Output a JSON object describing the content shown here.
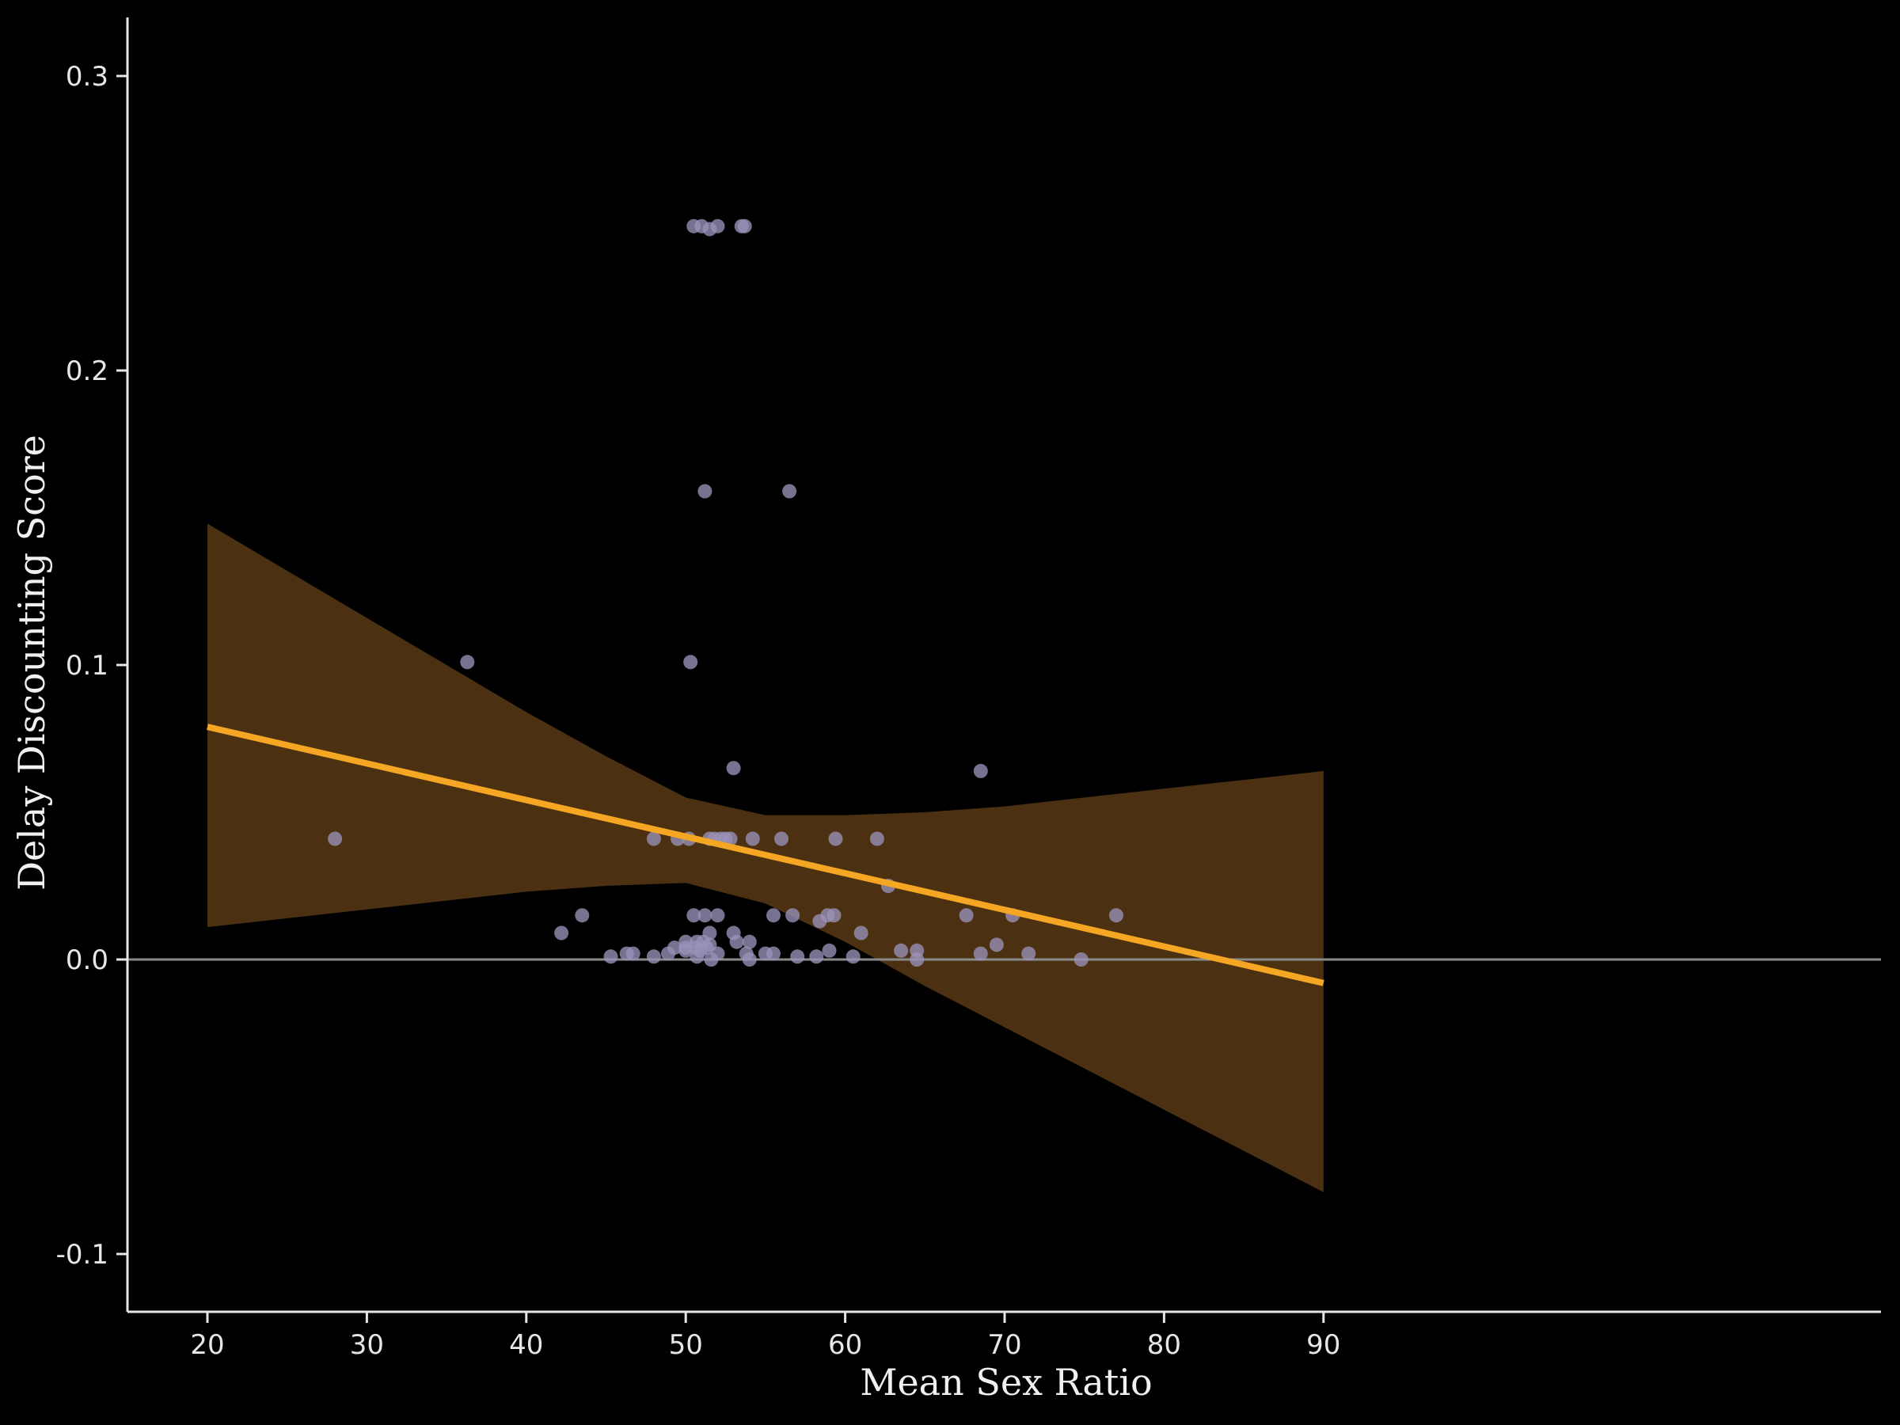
{
  "chart_data": {
    "type": "scatter",
    "title": "",
    "xlabel": "Mean Sex Ratio",
    "ylabel": "Delay Discounting Score",
    "xlim": [
      16.5,
      93.5
    ],
    "ylim": [
      -0.12,
      0.32
    ],
    "x_ticks": [
      20,
      30,
      40,
      50,
      60,
      70,
      80,
      90
    ],
    "x_tick_labels": [
      "20",
      "30",
      "40",
      "50",
      "60",
      "70",
      "80",
      "90"
    ],
    "y_ticks": [
      -0.1,
      0.0,
      0.1,
      0.2,
      0.3
    ],
    "y_tick_labels": [
      "-0.1",
      "0.0",
      "0.1",
      "0.2",
      "0.3"
    ],
    "grid": false,
    "reference_line_y": 0,
    "colors": {
      "background": "#000000",
      "points": "#9a92b8",
      "fit_line": "#f5a623",
      "confidence_band": "#4b3112",
      "reference_line": "#8a8a8a",
      "axes": "#e6e6e6"
    },
    "points": [
      [
        28.0,
        0.041
      ],
      [
        36.3,
        0.101
      ],
      [
        42.2,
        0.009
      ],
      [
        43.5,
        0.015
      ],
      [
        45.3,
        0.001
      ],
      [
        46.3,
        0.002
      ],
      [
        46.7,
        0.002
      ],
      [
        48.0,
        0.041
      ],
      [
        48.0,
        0.001
      ],
      [
        48.9,
        0.002
      ],
      [
        49.3,
        0.004
      ],
      [
        49.5,
        0.041
      ],
      [
        50.0,
        0.006
      ],
      [
        50.0,
        0.004
      ],
      [
        50.0,
        0.003
      ],
      [
        50.2,
        0.041
      ],
      [
        50.3,
        0.101
      ],
      [
        50.5,
        0.249
      ],
      [
        50.5,
        0.015
      ],
      [
        50.6,
        0.004
      ],
      [
        50.7,
        0.006
      ],
      [
        50.7,
        0.001
      ],
      [
        50.9,
        0.003
      ],
      [
        51.0,
        0.249
      ],
      [
        51.1,
        0.006
      ],
      [
        51.2,
        0.159
      ],
      [
        51.2,
        0.015
      ],
      [
        51.3,
        0.004
      ],
      [
        51.5,
        0.248
      ],
      [
        51.5,
        0.041
      ],
      [
        51.5,
        0.009
      ],
      [
        51.5,
        0.005
      ],
      [
        51.6,
        0.0
      ],
      [
        51.8,
        0.041
      ],
      [
        52.0,
        0.249
      ],
      [
        52.0,
        0.015
      ],
      [
        52.0,
        0.002
      ],
      [
        52.2,
        0.041
      ],
      [
        52.5,
        0.041
      ],
      [
        52.8,
        0.041
      ],
      [
        53.0,
        0.065
      ],
      [
        53.0,
        0.009
      ],
      [
        53.2,
        0.006
      ],
      [
        53.5,
        0.249
      ],
      [
        53.7,
        0.249
      ],
      [
        53.8,
        0.002
      ],
      [
        54.0,
        0.006
      ],
      [
        54.0,
        0.0
      ],
      [
        54.2,
        0.041
      ],
      [
        55.0,
        0.002
      ],
      [
        55.5,
        0.015
      ],
      [
        55.5,
        0.002
      ],
      [
        56.0,
        0.041
      ],
      [
        56.5,
        0.159
      ],
      [
        56.7,
        0.015
      ],
      [
        57.0,
        0.001
      ],
      [
        58.2,
        0.001
      ],
      [
        58.4,
        0.013
      ],
      [
        58.9,
        0.015
      ],
      [
        59.0,
        0.003
      ],
      [
        59.3,
        0.015
      ],
      [
        59.4,
        0.041
      ],
      [
        60.5,
        0.001
      ],
      [
        61.0,
        0.009
      ],
      [
        62.0,
        0.041
      ],
      [
        62.7,
        0.025
      ],
      [
        63.5,
        0.003
      ],
      [
        64.5,
        0.003
      ],
      [
        64.5,
        0.0
      ],
      [
        67.6,
        0.015
      ],
      [
        68.5,
        0.064
      ],
      [
        68.5,
        0.002
      ],
      [
        69.5,
        0.005
      ],
      [
        70.5,
        0.015
      ],
      [
        71.5,
        0.002
      ],
      [
        74.8,
        0.0
      ],
      [
        77.0,
        0.015
      ]
    ],
    "fit_line": {
      "x": [
        20,
        90
      ],
      "y": [
        0.079,
        -0.008
      ]
    },
    "confidence_band": {
      "x": [
        20,
        25,
        30,
        35,
        40,
        45,
        50,
        55,
        60,
        65,
        70,
        75,
        80,
        85,
        90
      ],
      "upper": [
        0.148,
        0.132,
        0.116,
        0.1,
        0.084,
        0.069,
        0.055,
        0.049,
        0.049,
        0.05,
        0.052,
        0.055,
        0.058,
        0.061,
        0.064
      ],
      "lower": [
        0.011,
        0.014,
        0.017,
        0.02,
        0.023,
        0.025,
        0.026,
        0.019,
        0.006,
        -0.009,
        -0.023,
        -0.037,
        -0.051,
        -0.065,
        -0.079
      ]
    }
  }
}
